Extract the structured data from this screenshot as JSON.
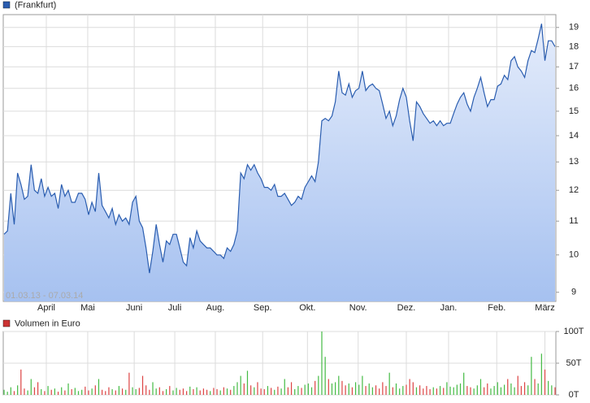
{
  "chart_data": [
    {
      "type": "area",
      "log_scale": true,
      "grid": true,
      "annotation": "01.03.13 - 07.03.14",
      "series": [
        {
          "name": "(Frankfurt)",
          "color": "#2a5db0",
          "values": [
            10.6,
            10.7,
            11.9,
            10.9,
            12.6,
            12.2,
            11.7,
            11.8,
            12.9,
            12.0,
            11.9,
            12.4,
            11.8,
            12.1,
            11.8,
            11.9,
            11.4,
            12.2,
            11.8,
            12.0,
            11.6,
            11.6,
            11.9,
            11.9,
            11.7,
            11.2,
            11.6,
            11.3,
            12.6,
            11.5,
            11.3,
            11.1,
            11.4,
            10.9,
            11.2,
            11.0,
            11.1,
            10.9,
            11.6,
            11.8,
            11.0,
            10.8,
            10.2,
            9.5,
            10.1,
            10.9,
            10.3,
            9.8,
            10.4,
            10.3,
            10.6,
            10.6,
            10.2,
            9.8,
            9.7,
            10.5,
            10.2,
            10.7,
            10.4,
            10.3,
            10.2,
            10.2,
            10.1,
            10.0,
            10.0,
            9.9,
            10.2,
            10.1,
            10.3,
            10.7,
            12.6,
            12.4,
            12.9,
            12.7,
            12.9,
            12.6,
            12.4,
            12.1,
            12.1,
            12.0,
            12.2,
            11.8,
            11.8,
            11.9,
            11.7,
            11.5,
            11.6,
            11.8,
            11.7,
            12.1,
            12.3,
            12.5,
            12.3,
            13.0,
            14.6,
            14.7,
            14.6,
            14.8,
            15.4,
            16.8,
            15.8,
            15.7,
            16.2,
            15.6,
            15.9,
            16.0,
            16.8,
            15.9,
            16.1,
            16.2,
            16.0,
            15.9,
            15.3,
            14.7,
            15.0,
            14.4,
            14.8,
            15.5,
            16.0,
            15.6,
            14.6,
            13.8,
            15.4,
            15.2,
            14.9,
            14.7,
            14.5,
            14.6,
            14.4,
            14.6,
            14.4,
            14.5,
            14.5,
            14.9,
            15.3,
            15.6,
            15.8,
            15.3,
            15.0,
            15.6,
            16.0,
            16.5,
            15.8,
            15.2,
            15.5,
            15.5,
            16.1,
            16.2,
            16.6,
            16.4,
            17.3,
            17.5,
            17.0,
            16.8,
            16.5,
            17.3,
            17.8,
            17.7,
            18.4,
            19.2,
            17.3,
            18.3,
            18.3,
            18.0
          ]
        }
      ],
      "xlim": [
        0,
        163
      ],
      "xticks": [
        {
          "value": 12.5,
          "label": "April"
        },
        {
          "value": 24.75,
          "label": "Mai"
        },
        {
          "value": 38.5,
          "label": "Juni"
        },
        {
          "value": 50.5,
          "label": "Juli"
        },
        {
          "value": 62.5,
          "label": "Aug."
        },
        {
          "value": 76.5,
          "label": "Sep."
        },
        {
          "value": 89.75,
          "label": "Okt."
        },
        {
          "value": 104.75,
          "label": "Nov."
        },
        {
          "value": 119,
          "label": "Dez."
        },
        {
          "value": 131.5,
          "label": "Jan."
        },
        {
          "value": 145.75,
          "label": "Feb."
        },
        {
          "value": 160,
          "label": "März"
        }
      ],
      "ylim": [
        8.77,
        19.7
      ],
      "yticks": [
        9,
        10,
        11,
        12,
        13,
        14,
        15,
        16,
        17,
        18,
        19
      ]
    },
    {
      "type": "bar",
      "grid": true,
      "series": [
        {
          "name": "Volumen in Euro",
          "color": "#cc3333",
          "up_color": "#44bb44",
          "down_color": "#dd4444",
          "values": [
            8,
            5,
            12,
            6,
            15,
            40,
            10,
            7,
            25,
            12,
            20,
            9,
            6,
            14,
            8,
            10,
            5,
            12,
            7,
            18,
            9,
            11,
            6,
            8,
            13,
            7,
            10,
            15,
            25,
            8,
            6,
            12,
            9,
            7,
            14,
            10,
            8,
            35,
            12,
            9,
            11,
            30,
            15,
            8,
            20,
            10,
            12,
            6,
            9,
            14,
            7,
            11,
            8,
            10,
            6,
            13,
            9,
            12,
            7,
            10,
            8,
            6,
            11,
            9,
            7,
            12,
            10,
            8,
            14,
            20,
            30,
            18,
            38,
            15,
            12,
            20,
            10,
            9,
            14,
            11,
            8,
            13,
            10,
            25,
            12,
            20,
            9,
            14,
            11,
            16,
            18,
            12,
            22,
            30,
            100,
            60,
            25,
            18,
            20,
            30,
            22,
            15,
            18,
            12,
            20,
            16,
            30,
            14,
            18,
            12,
            15,
            10,
            20,
            14,
            35,
            12,
            18,
            10,
            14,
            16,
            25,
            20,
            12,
            15,
            10,
            14,
            9,
            12,
            10,
            14,
            11,
            20,
            13,
            12,
            16,
            18,
            35,
            14,
            12,
            10,
            15,
            25,
            12,
            18,
            10,
            14,
            20,
            12,
            16,
            25,
            18,
            12,
            30,
            14,
            20,
            15,
            60,
            25,
            18,
            65,
            40,
            22,
            15,
            12
          ]
        }
      ],
      "ylim": [
        0,
        100
      ],
      "yticks": [
        {
          "value": 0,
          "label": "0T"
        },
        {
          "value": 50,
          "label": "50T"
        },
        {
          "value": 100,
          "label": "100T"
        }
      ]
    }
  ]
}
